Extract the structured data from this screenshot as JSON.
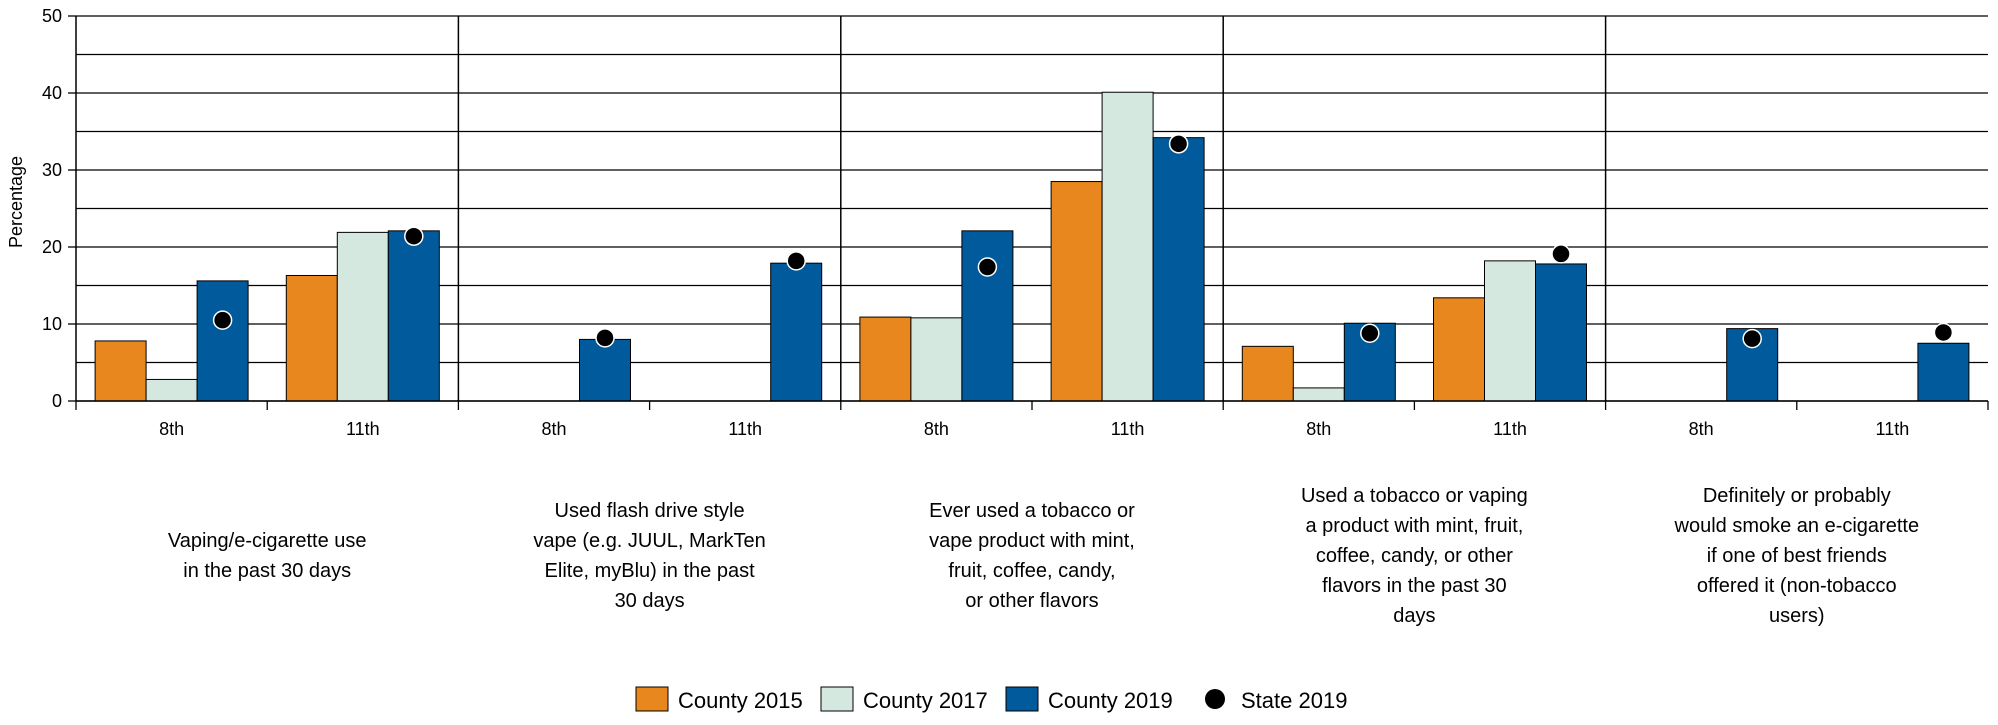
{
  "chart_data": {
    "type": "bar",
    "ylabel": "Percentage",
    "ylim": [
      0,
      50
    ],
    "yticks": [
      "0",
      "10",
      "20",
      "30",
      "40",
      "50"
    ],
    "grid": true,
    "legend_position": "bottom-center",
    "groups": [
      {
        "label_lines": [
          "Vaping/e-cigarette use",
          "in the past 30 days"
        ],
        "grades": [
          {
            "grade": "8th",
            "county2015": 7.8,
            "county2017": 2.8,
            "county2019": 15.6,
            "state2019": 10.5
          },
          {
            "grade": "11th",
            "county2015": 16.3,
            "county2017": 21.9,
            "county2019": 22.1,
            "state2019": 21.4
          }
        ]
      },
      {
        "label_lines": [
          "Used flash drive style",
          "vape (e.g. JUUL, MarkTen",
          "Elite, myBlu) in the past",
          "30 days"
        ],
        "grades": [
          {
            "grade": "8th",
            "county2015": null,
            "county2017": null,
            "county2019": 8.0,
            "state2019": 8.2
          },
          {
            "grade": "11th",
            "county2015": null,
            "county2017": null,
            "county2019": 17.9,
            "state2019": 18.2
          }
        ]
      },
      {
        "label_lines": [
          "Ever used a tobacco or",
          "vape product with mint,",
          "fruit, coffee, candy,",
          "or other flavors"
        ],
        "grades": [
          {
            "grade": "8th",
            "county2015": 10.9,
            "county2017": 10.8,
            "county2019": 22.1,
            "state2019": 17.4
          },
          {
            "grade": "11th",
            "county2015": 28.5,
            "county2017": 40.1,
            "county2019": 34.2,
            "state2019": 33.4
          }
        ]
      },
      {
        "label_lines": [
          "Used a tobacco or vaping",
          "a product with mint, fruit,",
          "coffee, candy, or other",
          "flavors in the past 30",
          "days"
        ],
        "grades": [
          {
            "grade": "8th",
            "county2015": 7.1,
            "county2017": 1.7,
            "county2019": 10.1,
            "state2019": 8.8
          },
          {
            "grade": "11th",
            "county2015": 13.4,
            "county2017": 18.2,
            "county2019": 17.8,
            "state2019": 19.1
          }
        ]
      },
      {
        "label_lines": [
          "Definitely or probably",
          "would smoke an e-cigarette",
          "if one of best friends",
          "offered it (non-tobacco",
          "users)"
        ],
        "grades": [
          {
            "grade": "8th",
            "county2015": null,
            "county2017": null,
            "county2019": 9.4,
            "state2019": 8.1
          },
          {
            "grade": "11th",
            "county2015": null,
            "county2017": null,
            "county2019": 7.5,
            "state2019": 8.9
          }
        ]
      }
    ],
    "legend": [
      {
        "key": "county2015",
        "label": "County 2015",
        "color": "#e8871e",
        "kind": "bar"
      },
      {
        "key": "county2017",
        "label": "County 2017",
        "color": "#d5e8df",
        "kind": "bar"
      },
      {
        "key": "county2019",
        "label": "County 2019",
        "color": "#005a9c",
        "kind": "bar"
      },
      {
        "key": "state2019",
        "label": "State 2019",
        "color": "#000000",
        "kind": "dot"
      }
    ]
  }
}
